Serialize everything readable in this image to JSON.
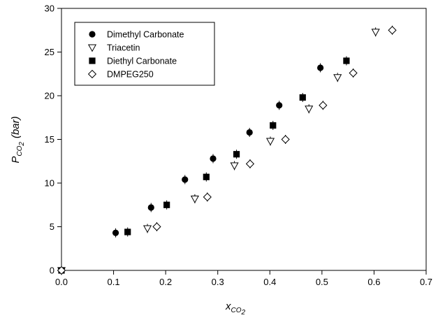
{
  "chart_data": {
    "type": "scatter",
    "xlabel": {
      "main": "x",
      "sub1": "CO",
      "sub2": "2"
    },
    "ylabel": {
      "main": "P",
      "sub1": "CO",
      "sub2": "2",
      "unit": "(bar)"
    },
    "xlim": [
      0.0,
      0.7
    ],
    "ylim": [
      0,
      30
    ],
    "x_ticks": [
      0.0,
      0.1,
      0.2,
      0.3,
      0.4,
      0.5,
      0.6,
      0.7
    ],
    "x_tick_labels": [
      "0.0",
      "0.1",
      "0.2",
      "0.3",
      "0.4",
      "0.5",
      "0.6",
      "0.7"
    ],
    "y_ticks": [
      0,
      5,
      10,
      15,
      20,
      25,
      30
    ],
    "y_tick_labels": [
      "0",
      "5",
      "10",
      "15",
      "20",
      "25",
      "30"
    ],
    "grid": false,
    "legend_position": "top-left",
    "series": [
      {
        "name": "Dimethyl Carbonate",
        "marker": "circle-filled",
        "color": "#000000",
        "x": [
          0.0,
          0.104,
          0.172,
          0.237,
          0.291,
          0.361,
          0.418,
          0.497
        ],
        "y": [
          0.0,
          4.3,
          7.2,
          10.4,
          12.8,
          15.8,
          18.9,
          23.2
        ]
      },
      {
        "name": "Triacetin",
        "marker": "triangle-down-open",
        "color": "#000000",
        "x": [
          0.0,
          0.165,
          0.256,
          0.332,
          0.401,
          0.475,
          0.53,
          0.603
        ],
        "y": [
          0.0,
          4.8,
          8.2,
          12.0,
          14.8,
          18.5,
          22.1,
          27.3
        ]
      },
      {
        "name": "Diethyl Carbonate",
        "marker": "square-filled",
        "color": "#000000",
        "x": [
          0.0,
          0.127,
          0.202,
          0.278,
          0.336,
          0.406,
          0.463,
          0.547
        ],
        "y": [
          0.0,
          4.4,
          7.5,
          10.7,
          13.3,
          16.6,
          19.8,
          24.0
        ]
      },
      {
        "name": "DMPEG250",
        "marker": "diamond-open",
        "color": "#000000",
        "x": [
          0.0,
          0.183,
          0.28,
          0.362,
          0.43,
          0.502,
          0.56,
          0.635
        ],
        "y": [
          0.0,
          5.0,
          8.4,
          12.2,
          15.0,
          18.9,
          22.6,
          27.5
        ]
      }
    ]
  }
}
